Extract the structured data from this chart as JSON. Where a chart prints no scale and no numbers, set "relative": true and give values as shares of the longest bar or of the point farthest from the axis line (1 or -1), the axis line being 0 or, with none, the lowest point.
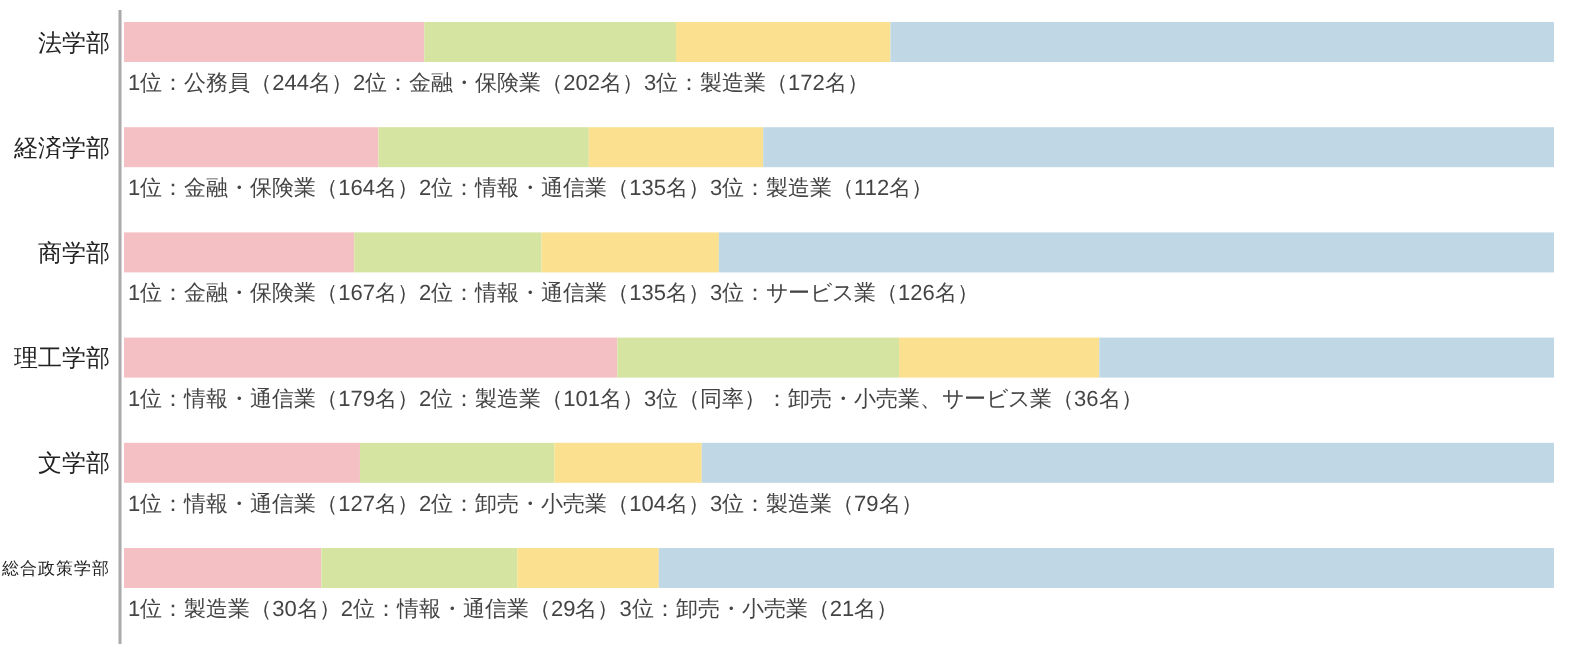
{
  "chart_data": {
    "type": "bar",
    "orientation": "horizontal",
    "stacked": true,
    "relative": true,
    "categories": [
      "法学部",
      "経済学部",
      "商学部",
      "理工学部",
      "文学部",
      "総合政策学部"
    ],
    "series": [
      {
        "color": "#f4c0c3",
        "values": [
          0.21,
          0.178,
          0.161,
          0.345,
          0.165,
          0.138
        ]
      },
      {
        "color": "#d5e4a0",
        "values": [
          0.176,
          0.147,
          0.131,
          0.197,
          0.136,
          0.137
        ]
      },
      {
        "color": "#fbe08f",
        "values": [
          0.15,
          0.122,
          0.124,
          0.14,
          0.103,
          0.099
        ]
      },
      {
        "color": "#c0d8e6",
        "values": [
          0.464,
          0.553,
          0.584,
          0.318,
          0.596,
          0.626
        ]
      }
    ],
    "annotations": [
      "1位：公務員（244名）2位：金融・保険業（202名）3位：製造業（172名）",
      "1位：金融・保険業（164名）2位：情報・通信業（135名）3位：製造業（112名）",
      "1位：金融・保険業（167名）2位：情報・通信業（135名）3位：サービス業（126名）",
      "1位：情報・通信業（179名）2位：製造業（101名）3位（同率）：卸売・小売業、サービス業（36名）",
      "1位：情報・通信業（127名）2位：卸売・小売業（104名）3位：製造業（79名）",
      "1位：製造業（30名）2位：情報・通信業（29名）3位：卸売・小売業（21名）"
    ]
  }
}
